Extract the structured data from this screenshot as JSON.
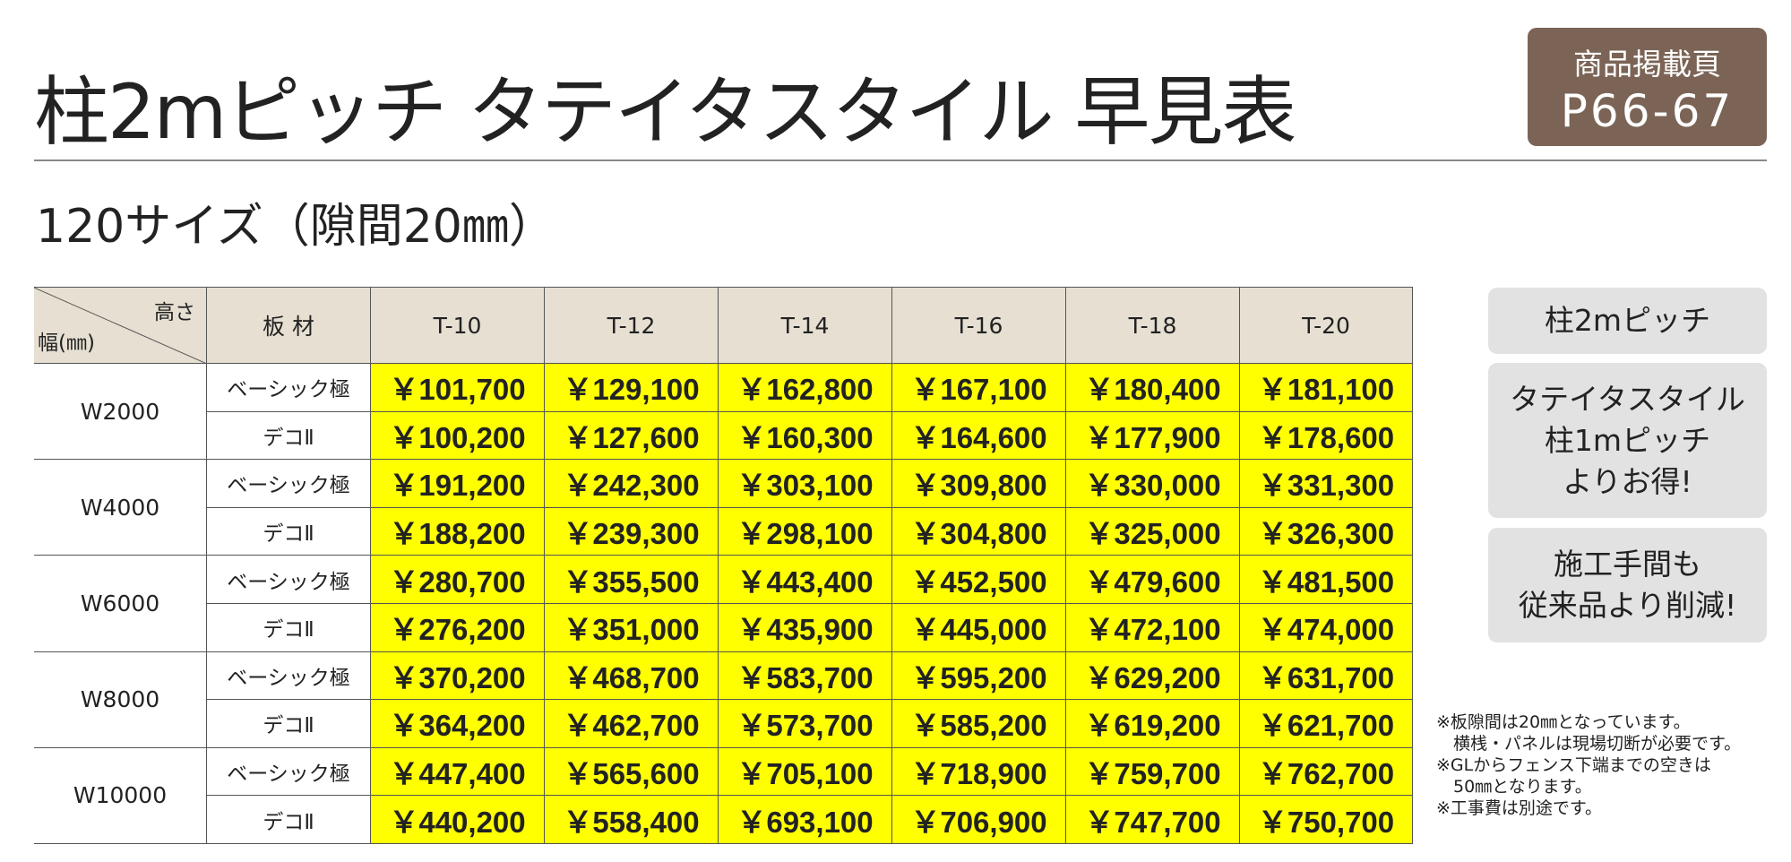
{
  "header": {
    "title": "柱2mピッチ タテイタスタイル 早見表",
    "badge": {
      "label": "商品掲載頁",
      "page": "P66-67"
    }
  },
  "subtitle": "120サイズ（隙間20㎜）",
  "table": {
    "corner_top": "高さ",
    "corner_bottom": "幅(㎜)",
    "material_header": "板 材",
    "columns": [
      "T-10",
      "T-12",
      "T-14",
      "T-16",
      "T-18",
      "T-20"
    ],
    "groups": [
      {
        "width": "W2000",
        "rows": [
          {
            "material": "ベーシック極",
            "prices": [
              "￥101,700",
              "￥129,100",
              "￥162,800",
              "￥167,100",
              "￥180,400",
              "￥181,100"
            ]
          },
          {
            "material": "デコⅡ",
            "prices": [
              "￥100,200",
              "￥127,600",
              "￥160,300",
              "￥164,600",
              "￥177,900",
              "￥178,600"
            ]
          }
        ]
      },
      {
        "width": "W4000",
        "rows": [
          {
            "material": "ベーシック極",
            "prices": [
              "￥191,200",
              "￥242,300",
              "￥303,100",
              "￥309,800",
              "￥330,000",
              "￥331,300"
            ]
          },
          {
            "material": "デコⅡ",
            "prices": [
              "￥188,200",
              "￥239,300",
              "￥298,100",
              "￥304,800",
              "￥325,000",
              "￥326,300"
            ]
          }
        ]
      },
      {
        "width": "W6000",
        "rows": [
          {
            "material": "ベーシック極",
            "prices": [
              "￥280,700",
              "￥355,500",
              "￥443,400",
              "￥452,500",
              "￥479,600",
              "￥481,500"
            ]
          },
          {
            "material": "デコⅡ",
            "prices": [
              "￥276,200",
              "￥351,000",
              "￥435,900",
              "￥445,000",
              "￥472,100",
              "￥474,000"
            ]
          }
        ]
      },
      {
        "width": "W8000",
        "rows": [
          {
            "material": "ベーシック極",
            "prices": [
              "￥370,200",
              "￥468,700",
              "￥583,700",
              "￥595,200",
              "￥629,200",
              "￥631,700"
            ]
          },
          {
            "material": "デコⅡ",
            "prices": [
              "￥364,200",
              "￥462,700",
              "￥573,700",
              "￥585,200",
              "￥619,200",
              "￥621,700"
            ]
          }
        ]
      },
      {
        "width": "W10000",
        "rows": [
          {
            "material": "ベーシック極",
            "prices": [
              "￥447,400",
              "￥565,600",
              "￥705,100",
              "￥718,900",
              "￥759,700",
              "￥762,700"
            ]
          },
          {
            "material": "デコⅡ",
            "prices": [
              "￥440,200",
              "￥558,400",
              "￥693,100",
              "￥706,900",
              "￥747,700",
              "￥750,700"
            ]
          }
        ]
      }
    ]
  },
  "side_boxes": [
    {
      "lines": [
        "柱2mピッチ"
      ]
    },
    {
      "lines": [
        "タテイタスタイル",
        "柱1mピッチ",
        "よりお得!"
      ]
    },
    {
      "lines": [
        "施工手間も",
        "従来品より削減!"
      ]
    }
  ],
  "notes": [
    "※板隙間は20㎜となっています。",
    "　横桟・パネルは現場切断が必要です。",
    "※GLからフェンス下端までの空きは",
    "　50㎜となります。",
    "※工事費は別途です。"
  ]
}
